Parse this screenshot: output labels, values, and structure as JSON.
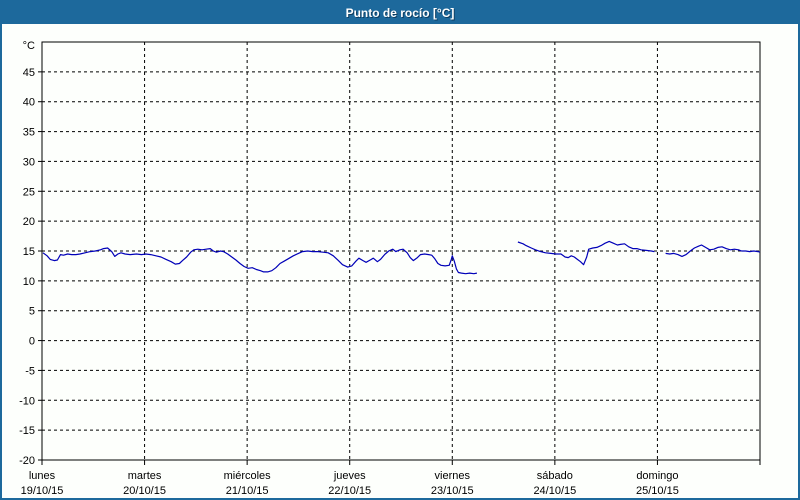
{
  "window": {
    "title": "Punto de rocío [°C]"
  },
  "colors": {
    "titlebar_bg": "#1d699c",
    "border": "#1d699c",
    "title_text": "#ffffff",
    "background": "#fdfffc",
    "axis": "#000000",
    "grid": "#000000",
    "line": "#0000b8"
  },
  "chart_data": {
    "type": "line",
    "title": "Punto de rocío [°C]",
    "ylabel": "°C",
    "xlabel": "",
    "ylim": [
      -20,
      50
    ],
    "ytick_step": 5,
    "grid": true,
    "legend": "none",
    "grid_style": "dashed",
    "axis_color": "#000000",
    "grid_color": "#000000",
    "x_categories": [
      {
        "day": "lunes",
        "date": "19/10/15"
      },
      {
        "day": "martes",
        "date": "20/10/15"
      },
      {
        "day": "miércoles",
        "date": "21/10/15"
      },
      {
        "day": "jueves",
        "date": "22/10/15"
      },
      {
        "day": "viernes",
        "date": "23/10/15"
      },
      {
        "day": "sábado",
        "date": "24/10/15"
      },
      {
        "day": "domingo",
        "date": "25/10/15"
      }
    ],
    "series": [
      {
        "name": "Punto de rocío",
        "color": "#0000b8",
        "unit": "°C",
        "segments": [
          [
            [
              0.01,
              14.7
            ],
            [
              0.05,
              14.2
            ],
            [
              0.08,
              13.6
            ],
            [
              0.12,
              13.4
            ],
            [
              0.15,
              13.5
            ],
            [
              0.18,
              14.4
            ],
            [
              0.21,
              14.3
            ],
            [
              0.25,
              14.5
            ],
            [
              0.29,
              14.4
            ],
            [
              0.33,
              14.4
            ],
            [
              0.37,
              14.5
            ],
            [
              0.42,
              14.7
            ],
            [
              0.47,
              14.9
            ],
            [
              0.52,
              15.0
            ],
            [
              0.57,
              15.2
            ],
            [
              0.6,
              15.4
            ],
            [
              0.64,
              15.5
            ],
            [
              0.68,
              14.9
            ],
            [
              0.71,
              14.1
            ],
            [
              0.74,
              14.5
            ],
            [
              0.77,
              14.7
            ],
            [
              0.81,
              14.5
            ],
            [
              0.86,
              14.4
            ],
            [
              0.92,
              14.5
            ],
            [
              0.97,
              14.4
            ],
            [
              1.01,
              14.5
            ],
            [
              1.06,
              14.4
            ],
            [
              1.11,
              14.2
            ],
            [
              1.16,
              14.0
            ],
            [
              1.21,
              13.6
            ],
            [
              1.26,
              13.2
            ],
            [
              1.3,
              12.8
            ],
            [
              1.34,
              12.9
            ],
            [
              1.37,
              13.4
            ],
            [
              1.41,
              14.0
            ],
            [
              1.45,
              14.8
            ],
            [
              1.48,
              15.2
            ],
            [
              1.52,
              15.3
            ],
            [
              1.56,
              15.2
            ],
            [
              1.6,
              15.3
            ],
            [
              1.64,
              15.4
            ],
            [
              1.67,
              15.0
            ],
            [
              1.7,
              14.8
            ],
            [
              1.74,
              15.0
            ],
            [
              1.77,
              14.9
            ],
            [
              1.81,
              14.5
            ],
            [
              1.85,
              14.0
            ],
            [
              1.89,
              13.5
            ],
            [
              1.93,
              12.9
            ],
            [
              1.97,
              12.4
            ],
            [
              2.01,
              12.1
            ],
            [
              2.05,
              12.2
            ],
            [
              2.09,
              11.9
            ],
            [
              2.13,
              11.7
            ],
            [
              2.16,
              11.5
            ],
            [
              2.2,
              11.5
            ],
            [
              2.24,
              11.7
            ],
            [
              2.28,
              12.2
            ],
            [
              2.32,
              12.9
            ],
            [
              2.36,
              13.3
            ],
            [
              2.4,
              13.7
            ],
            [
              2.45,
              14.2
            ],
            [
              2.5,
              14.6
            ],
            [
              2.54,
              14.9
            ],
            [
              2.59,
              15.0
            ],
            [
              2.64,
              14.9
            ],
            [
              2.69,
              14.9
            ],
            [
              2.74,
              14.8
            ],
            [
              2.79,
              14.7
            ],
            [
              2.84,
              14.2
            ],
            [
              2.89,
              13.4
            ],
            [
              2.93,
              12.7
            ],
            [
              2.98,
              12.3
            ],
            [
              3.02,
              12.5
            ],
            [
              3.06,
              13.3
            ],
            [
              3.09,
              13.8
            ],
            [
              3.13,
              13.4
            ],
            [
              3.16,
              13.1
            ],
            [
              3.2,
              13.5
            ],
            [
              3.23,
              13.8
            ],
            [
              3.27,
              13.2
            ],
            [
              3.3,
              13.6
            ],
            [
              3.34,
              14.4
            ],
            [
              3.38,
              15.0
            ],
            [
              3.42,
              15.3
            ],
            [
              3.45,
              14.9
            ],
            [
              3.49,
              15.2
            ],
            [
              3.52,
              15.3
            ],
            [
              3.56,
              14.7
            ],
            [
              3.59,
              13.9
            ],
            [
              3.62,
              13.4
            ],
            [
              3.66,
              13.9
            ],
            [
              3.69,
              14.4
            ],
            [
              3.73,
              14.5
            ],
            [
              3.77,
              14.4
            ],
            [
              3.8,
              14.3
            ],
            [
              3.83,
              13.7
            ],
            [
              3.86,
              12.9
            ],
            [
              3.89,
              12.6
            ],
            [
              3.93,
              12.5
            ],
            [
              3.97,
              12.6
            ],
            [
              3.99,
              13.6
            ],
            [
              4.0,
              14.2
            ],
            [
              4.02,
              13.3
            ],
            [
              4.04,
              12.0
            ],
            [
              4.06,
              11.4
            ],
            [
              4.09,
              11.3
            ],
            [
              4.13,
              11.2
            ],
            [
              4.17,
              11.3
            ],
            [
              4.21,
              11.2
            ],
            [
              4.24,
              11.3
            ]
          ],
          [
            [
              4.64,
              16.5
            ],
            [
              4.69,
              16.2
            ],
            [
              4.72,
              15.9
            ],
            [
              4.77,
              15.5
            ],
            [
              4.81,
              15.2
            ],
            [
              4.86,
              14.9
            ],
            [
              4.91,
              14.7
            ],
            [
              4.96,
              14.6
            ],
            [
              5.01,
              14.5
            ],
            [
              5.06,
              14.5
            ],
            [
              5.1,
              14.0
            ],
            [
              5.13,
              13.9
            ],
            [
              5.16,
              14.2
            ],
            [
              5.19,
              14.0
            ],
            [
              5.22,
              13.6
            ],
            [
              5.25,
              13.2
            ],
            [
              5.28,
              12.7
            ],
            [
              5.31,
              14.0
            ],
            [
              5.33,
              15.3
            ],
            [
              5.37,
              15.5
            ],
            [
              5.41,
              15.6
            ],
            [
              5.45,
              15.9
            ],
            [
              5.49,
              16.3
            ],
            [
              5.53,
              16.6
            ],
            [
              5.57,
              16.3
            ],
            [
              5.61,
              16.0
            ],
            [
              5.64,
              16.1
            ],
            [
              5.68,
              16.2
            ],
            [
              5.72,
              15.7
            ],
            [
              5.76,
              15.4
            ],
            [
              5.8,
              15.4
            ],
            [
              5.84,
              15.2
            ],
            [
              5.89,
              15.1
            ],
            [
              5.94,
              15.0
            ],
            [
              5.97,
              14.9
            ]
          ],
          [
            [
              6.08,
              14.6
            ],
            [
              6.12,
              14.5
            ],
            [
              6.16,
              14.6
            ],
            [
              6.2,
              14.4
            ],
            [
              6.24,
              14.1
            ],
            [
              6.28,
              14.4
            ],
            [
              6.32,
              15.0
            ],
            [
              6.36,
              15.5
            ],
            [
              6.4,
              15.8
            ],
            [
              6.43,
              16.0
            ],
            [
              6.47,
              15.6
            ],
            [
              6.51,
              15.2
            ],
            [
              6.55,
              15.3
            ],
            [
              6.59,
              15.6
            ],
            [
              6.63,
              15.7
            ],
            [
              6.67,
              15.4
            ],
            [
              6.71,
              15.2
            ],
            [
              6.75,
              15.3
            ],
            [
              6.79,
              15.2
            ],
            [
              6.82,
              15.0
            ],
            [
              6.86,
              15.0
            ],
            [
              6.9,
              14.9
            ],
            [
              6.94,
              15.0
            ],
            [
              6.98,
              14.9
            ],
            [
              7.0,
              14.8
            ]
          ]
        ]
      }
    ]
  }
}
